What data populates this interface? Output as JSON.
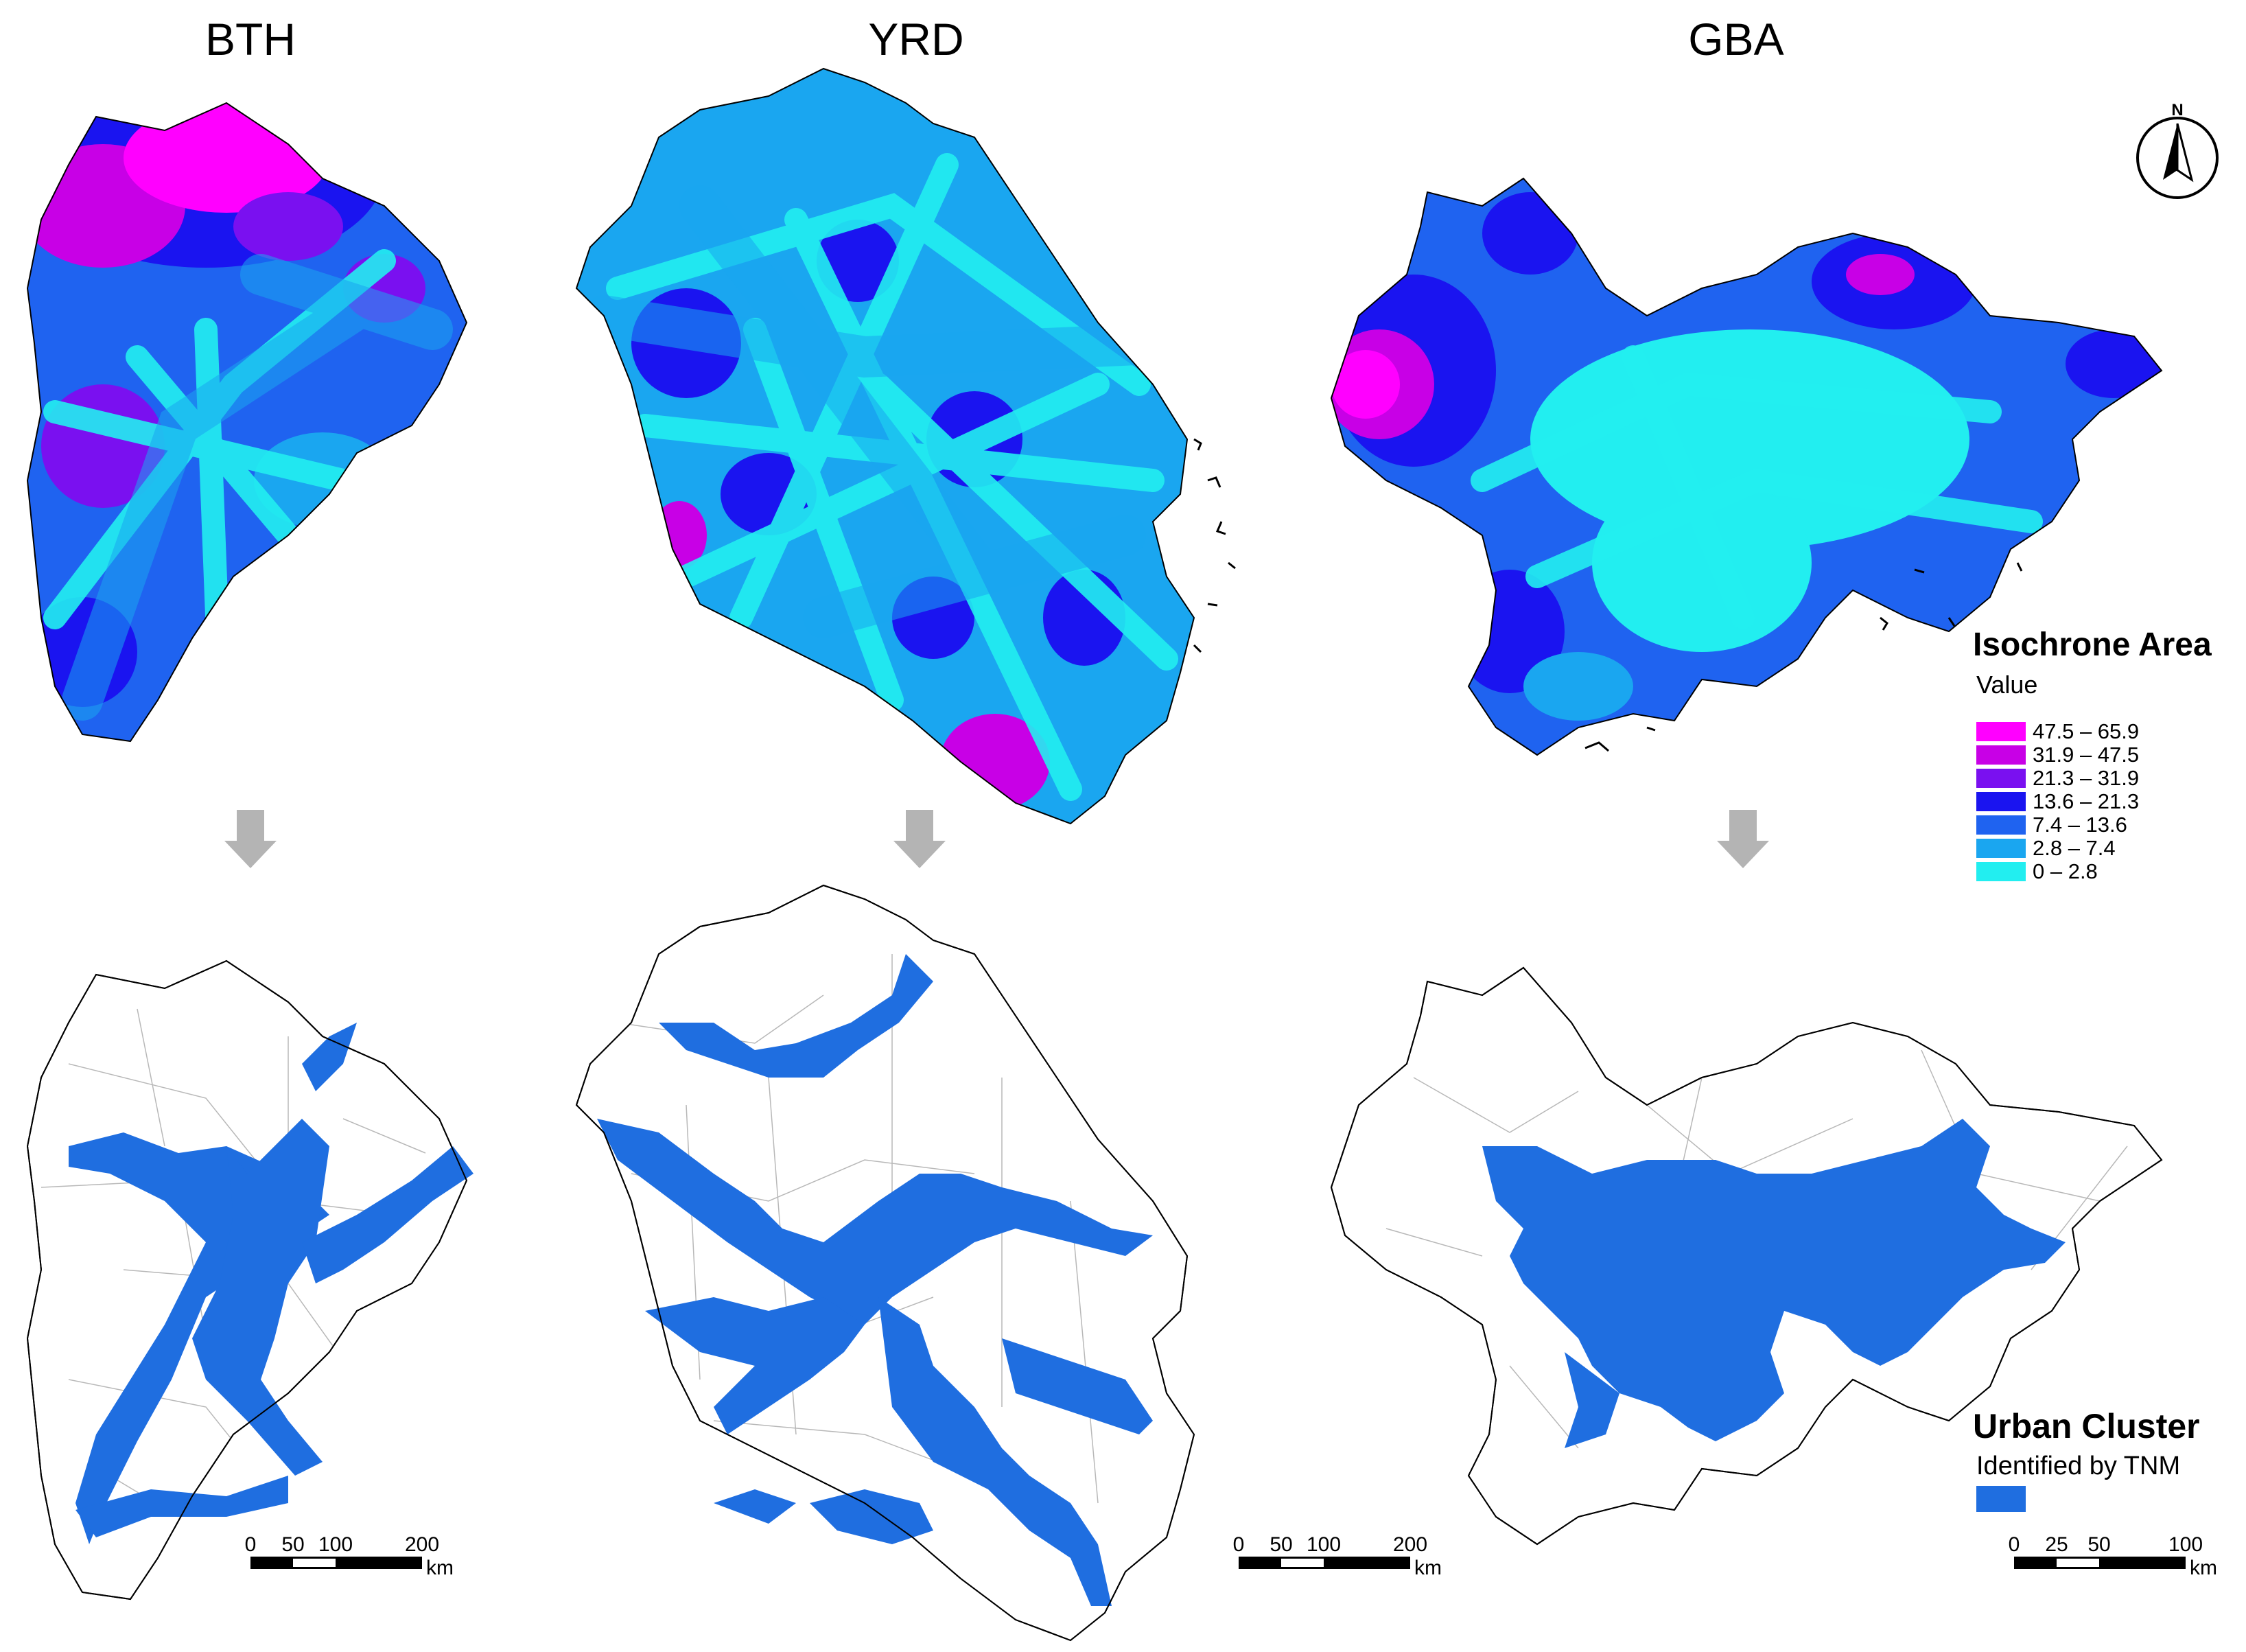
{
  "regions": [
    {
      "id": "bth",
      "title": "BTH"
    },
    {
      "id": "yrd",
      "title": "YRD"
    },
    {
      "id": "gba",
      "title": "GBA"
    }
  ],
  "north_arrow": {
    "label": "N",
    "icon": "north-arrow-icon"
  },
  "isochrone_legend": {
    "title": "Isochrone Area",
    "subtitle": "Value",
    "classes": [
      {
        "label": "47.5 – 65.9",
        "color": "#ff00ff"
      },
      {
        "label": "31.9 – 47.5",
        "color": "#c800e6"
      },
      {
        "label": "21.3 – 31.9",
        "color": "#7a10f0"
      },
      {
        "label": "13.6 – 21.3",
        "color": "#1a14f0"
      },
      {
        "label": "7.4 – 13.6",
        "color": "#1f63f0"
      },
      {
        "label": "2.8 – 7.4",
        "color": "#1aa6f0"
      },
      {
        "label": "0 – 2.8",
        "color": "#22eef0"
      }
    ]
  },
  "cluster_legend": {
    "title": "Urban Cluster",
    "subtitle": "Identified by TNM",
    "color": "#1f6ee0"
  },
  "scale_bars": [
    {
      "id": "bth",
      "ticks": [
        "0",
        "50",
        "100",
        "200"
      ],
      "unit": "km"
    },
    {
      "id": "yrd",
      "ticks": [
        "0",
        "50",
        "100",
        "200"
      ],
      "unit": "km"
    },
    {
      "id": "gba",
      "ticks": [
        "0",
        "25",
        "50",
        "100"
      ],
      "unit": "km"
    }
  ],
  "colors": {
    "arrow": "#b4b4b4",
    "outline": "#000000",
    "boundary": "#9a9a9a"
  }
}
